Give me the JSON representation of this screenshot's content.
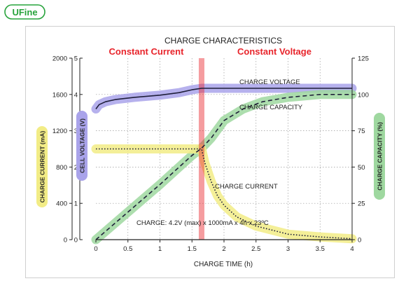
{
  "logo": {
    "text": "UFine",
    "color": "#27a33b"
  },
  "chart_data": {
    "type": "line",
    "title": "CHARGE CHARACTERISTICS",
    "xlabel": "CHARGE TIME (h)",
    "xlim": [
      0,
      4
    ],
    "x_ticks": [
      "0",
      "0.5",
      "1",
      "1.5",
      "2",
      "2.5",
      "3",
      "3.5",
      "4"
    ],
    "grid": true,
    "phases": [
      {
        "label": "Constant Current",
        "from": 0,
        "to": 1.65,
        "color": "#e8242b"
      },
      {
        "label": "Constant Voltage",
        "from": 1.65,
        "to": 4,
        "color": "#e8242b"
      }
    ],
    "phase_boundary_x": 1.65,
    "axes": {
      "current": {
        "label": "CHARGE CURRENT (mA)",
        "ylim": [
          0,
          2000
        ],
        "ticks": [
          "0",
          "400",
          "800",
          "1200",
          "1600",
          "2000"
        ],
        "color": "#f2ec86"
      },
      "voltage": {
        "label": "CELL VOLTAGE (V)",
        "ylim": [
          0,
          5
        ],
        "ticks": [
          "0",
          "1",
          "2",
          "3",
          "4",
          "5"
        ],
        "color": "#a9a3ea"
      },
      "capacity": {
        "label": "CHARGE CAPACITY (%)",
        "ylim": [
          0,
          125
        ],
        "ticks": [
          "0",
          "25",
          "50",
          "75",
          "100",
          "125"
        ],
        "color": "#9fd8a0"
      }
    },
    "series": [
      {
        "name": "CHARGE VOLTAGE",
        "axis": "voltage",
        "style": "solid",
        "color": "#a9a3ea",
        "x": [
          0,
          0.05,
          0.15,
          0.3,
          0.6,
          1.0,
          1.3,
          1.5,
          1.65,
          2.0,
          2.5,
          3.0,
          3.5,
          4.0
        ],
        "y": [
          3.6,
          3.72,
          3.8,
          3.86,
          3.92,
          3.98,
          4.05,
          4.13,
          4.17,
          4.17,
          4.17,
          4.17,
          4.17,
          4.17
        ]
      },
      {
        "name": "CHARGE CAPACITY",
        "axis": "capacity",
        "style": "dashed",
        "color": "#9fd8a0",
        "x": [
          0,
          0.5,
          1.0,
          1.3,
          1.5,
          1.65,
          1.8,
          2.0,
          2.3,
          2.6,
          3.0,
          3.5,
          4.0
        ],
        "y": [
          0,
          19,
          38,
          50,
          58,
          63,
          70,
          82,
          90,
          95,
          98,
          100,
          100
        ]
      },
      {
        "name": "CHARGE CURRENT",
        "axis": "current",
        "style": "dotted",
        "color": "#f2ec86",
        "x": [
          0,
          0.5,
          1.0,
          1.5,
          1.65,
          1.7,
          1.8,
          1.9,
          2.0,
          2.2,
          2.5,
          3.0,
          3.5,
          4.0
        ],
        "y": [
          1000,
          1000,
          1000,
          1000,
          1000,
          850,
          640,
          480,
          380,
          250,
          150,
          60,
          30,
          10
        ]
      }
    ],
    "annotation": "CHARGE: 4.2V (max) x 1000mA x 4h x 23ºC"
  }
}
